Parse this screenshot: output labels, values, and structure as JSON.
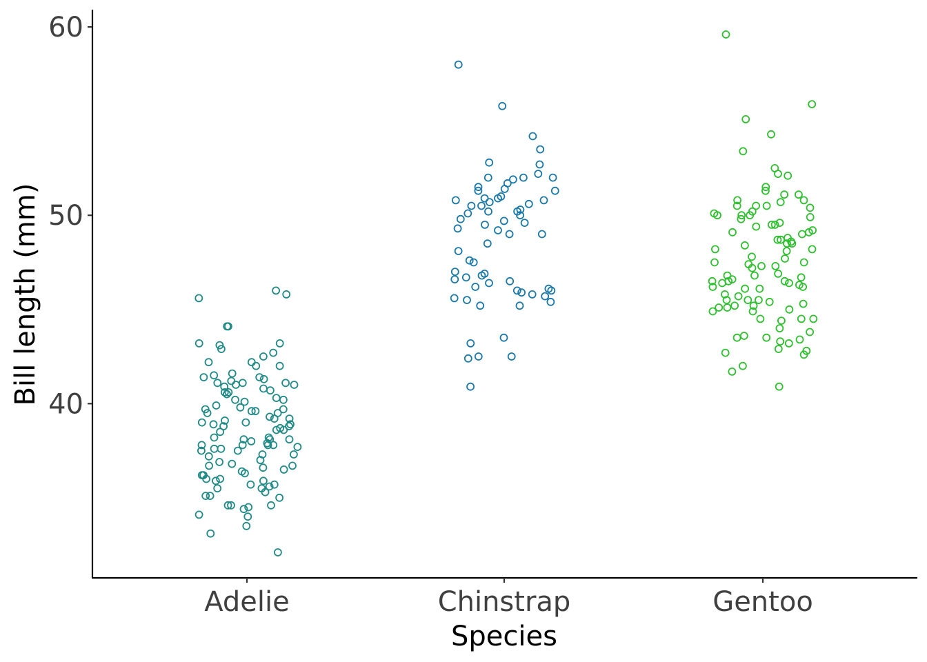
{
  "chart_data": {
    "type": "scatter",
    "subtype": "jitter-strip",
    "title": "",
    "xlabel": "Species",
    "ylabel": "Bill length (mm)",
    "categories": [
      "Adelie",
      "Chinstrap",
      "Gentoo"
    ],
    "ylim": [
      31,
      61
    ],
    "yticks": [
      40,
      50,
      60
    ],
    "grid": false,
    "legend": "none",
    "series": [
      {
        "category": "Adelie",
        "color": "#1f8a86",
        "values": [
          45.6,
          46.0,
          45.8,
          44.1,
          44.1,
          43.2,
          43.2,
          43.1,
          42.9,
          42.7,
          42.5,
          42.2,
          42.2,
          42.0,
          42.0,
          41.6,
          41.5,
          41.4,
          41.4,
          41.3,
          41.2,
          41.1,
          41.1,
          41.1,
          41.0,
          41.0,
          40.9,
          40.8,
          40.7,
          40.6,
          40.6,
          40.5,
          40.3,
          40.2,
          40.2,
          40.1,
          39.9,
          39.8,
          39.7,
          39.7,
          39.6,
          39.6,
          39.5,
          39.5,
          39.3,
          39.2,
          39.2,
          39.1,
          39.0,
          39.0,
          38.9,
          38.9,
          38.8,
          38.8,
          38.7,
          38.6,
          38.6,
          38.5,
          38.2,
          38.2,
          38.1,
          38.1,
          38.1,
          38.0,
          37.9,
          37.8,
          37.8,
          37.8,
          37.8,
          37.7,
          37.6,
          37.6,
          37.5,
          37.5,
          37.3,
          37.3,
          37.2,
          37.0,
          36.9,
          36.8,
          36.7,
          36.7,
          36.6,
          36.5,
          36.4,
          36.3,
          36.2,
          36.2,
          36.0,
          36.0,
          35.9,
          35.9,
          35.7,
          35.7,
          35.6,
          35.5,
          35.5,
          35.3,
          35.1,
          35.1,
          35.0,
          34.6,
          34.6,
          34.6,
          34.5,
          34.4,
          34.1,
          34.0,
          33.5,
          33.1,
          32.1
        ]
      },
      {
        "category": "Chinstrap",
        "color": "#1a78a8",
        "values": [
          58.0,
          55.8,
          54.2,
          53.5,
          52.8,
          52.7,
          52.2,
          52.0,
          52.0,
          52.0,
          51.9,
          51.7,
          51.5,
          51.4,
          51.3,
          51.3,
          51.0,
          50.9,
          50.9,
          50.8,
          50.8,
          50.7,
          50.6,
          50.5,
          50.5,
          50.3,
          50.2,
          50.2,
          50.1,
          50.0,
          49.8,
          49.7,
          49.6,
          49.5,
          49.3,
          49.2,
          49.0,
          49.0,
          48.5,
          48.1,
          47.6,
          47.5,
          47.0,
          46.9,
          46.8,
          46.7,
          46.6,
          46.5,
          46.4,
          46.2,
          46.1,
          46.0,
          46.0,
          45.9,
          45.8,
          45.7,
          45.6,
          45.5,
          45.4,
          45.2,
          45.2,
          43.5,
          43.2,
          42.5,
          42.5,
          42.4,
          40.9
        ]
      },
      {
        "category": "Gentoo",
        "color": "#2ec02e",
        "values": [
          59.6,
          55.9,
          55.1,
          54.3,
          53.4,
          52.5,
          52.2,
          52.1,
          51.5,
          51.3,
          51.1,
          51.1,
          50.8,
          50.8,
          50.7,
          50.5,
          50.5,
          50.5,
          50.4,
          50.2,
          50.1,
          50.0,
          50.0,
          50.0,
          49.9,
          49.8,
          49.6,
          49.5,
          49.5,
          49.4,
          49.2,
          49.1,
          49.1,
          49.0,
          48.8,
          48.7,
          48.7,
          48.6,
          48.5,
          48.5,
          48.4,
          48.2,
          48.2,
          48.1,
          47.8,
          47.7,
          47.5,
          47.5,
          47.4,
          47.3,
          47.3,
          47.2,
          46.9,
          46.8,
          46.8,
          46.7,
          46.6,
          46.5,
          46.5,
          46.5,
          46.4,
          46.4,
          46.3,
          46.2,
          46.2,
          46.1,
          46.1,
          45.8,
          45.7,
          45.5,
          45.5,
          45.5,
          45.4,
          45.3,
          45.2,
          45.2,
          45.1,
          45.1,
          45.0,
          44.9,
          44.9,
          44.5,
          44.5,
          44.5,
          44.4,
          44.0,
          43.8,
          43.6,
          43.5,
          43.5,
          43.4,
          43.3,
          43.2,
          42.9,
          42.8,
          42.7,
          42.6,
          42.0,
          41.7,
          40.9
        ]
      }
    ]
  }
}
